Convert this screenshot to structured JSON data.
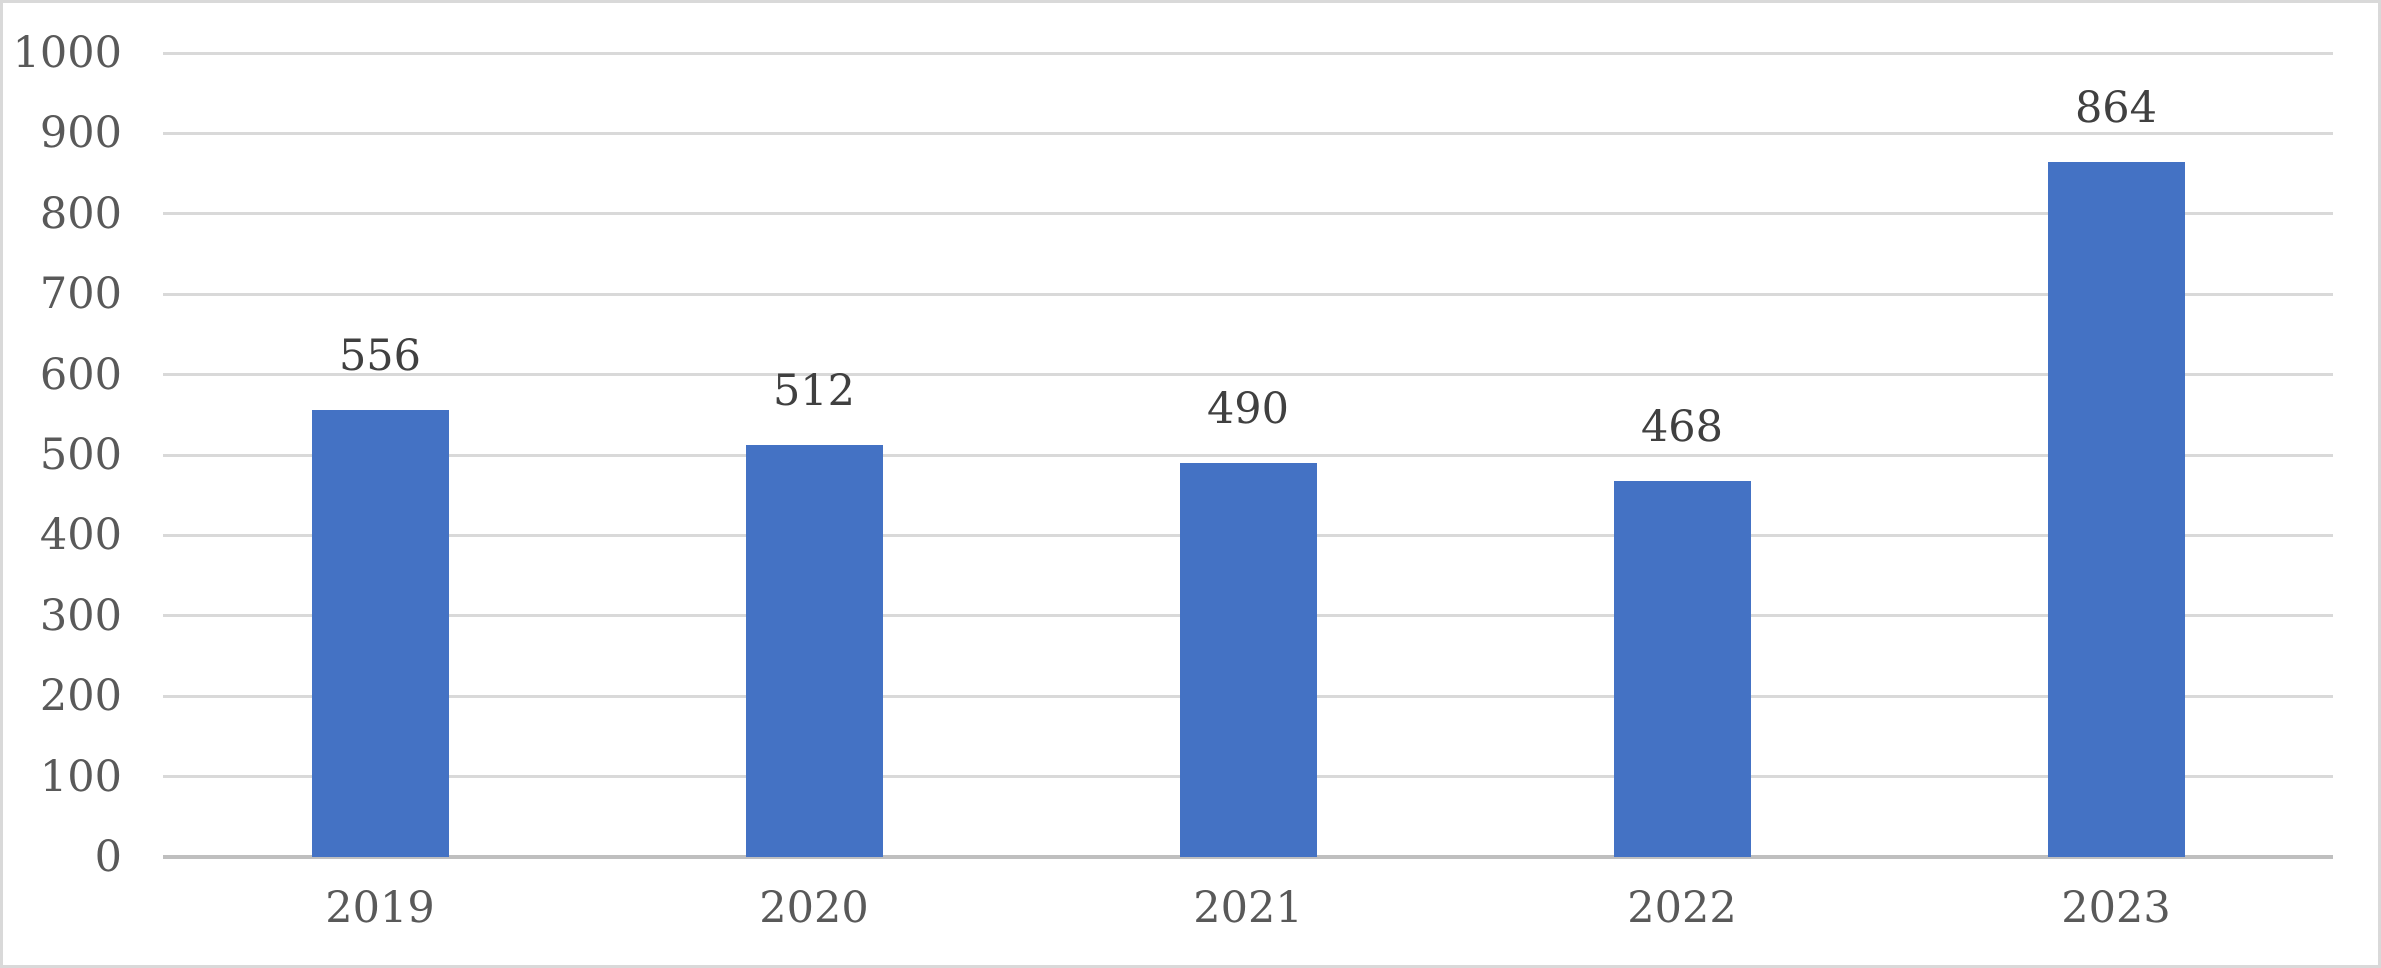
{
  "chart_data": {
    "type": "bar",
    "title": "",
    "xlabel": "",
    "ylabel": "",
    "categories": [
      "2019",
      "2020",
      "2021",
      "2022",
      "2023"
    ],
    "values": [
      556,
      512,
      490,
      468,
      864
    ],
    "data_labels": [
      "556",
      "512",
      "490",
      "468",
      "864"
    ],
    "ylim": [
      0,
      1000
    ],
    "yticks": [
      0,
      100,
      200,
      300,
      400,
      500,
      600,
      700,
      800,
      900,
      1000
    ],
    "grid": true,
    "legend_position": "none",
    "colors": {
      "bar": "#4472C4",
      "gridline": "#D9D9D9",
      "axis_line": "#BFBFBF",
      "tick_label": "#595959",
      "data_label": "#404040",
      "category_label": "#595959",
      "frame_border": "#D9D9D9",
      "background": "#FFFFFF"
    }
  }
}
